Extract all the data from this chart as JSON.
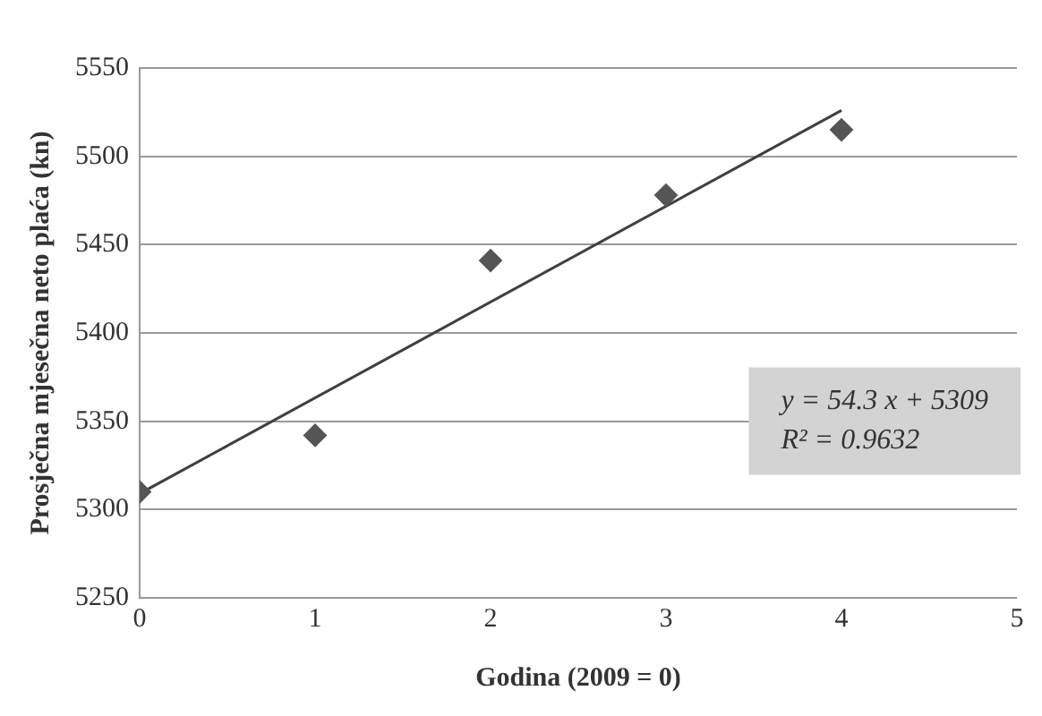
{
  "chart_data": {
    "type": "scatter",
    "xlabel": "Godina (2009 = 0)",
    "ylabel": "Prosječna mjesečna neto plaća (kn)",
    "x": [
      0,
      1,
      2,
      3,
      4
    ],
    "series": [
      {
        "color": "#555555",
        "values": [
          5310,
          5342,
          5441,
          5478,
          5515
        ],
        "marker": "diamond"
      },
      {
        "type": "line",
        "color": "#404040",
        "x": [
          0,
          4
        ],
        "values": [
          5309,
          5526
        ],
        "marker": "none",
        "line_style": "solid"
      }
    ],
    "xlim": [
      0,
      5
    ],
    "xticks": [
      0,
      1,
      2,
      3,
      4,
      5
    ],
    "ylim": [
      5250,
      5550
    ],
    "yticks": [
      5250,
      5300,
      5350,
      5400,
      5450,
      5500,
      5550
    ],
    "grid": "y",
    "legend": false,
    "annotations": [
      "y = 54.3 x + 5309",
      "R² = 0.9632"
    ]
  }
}
